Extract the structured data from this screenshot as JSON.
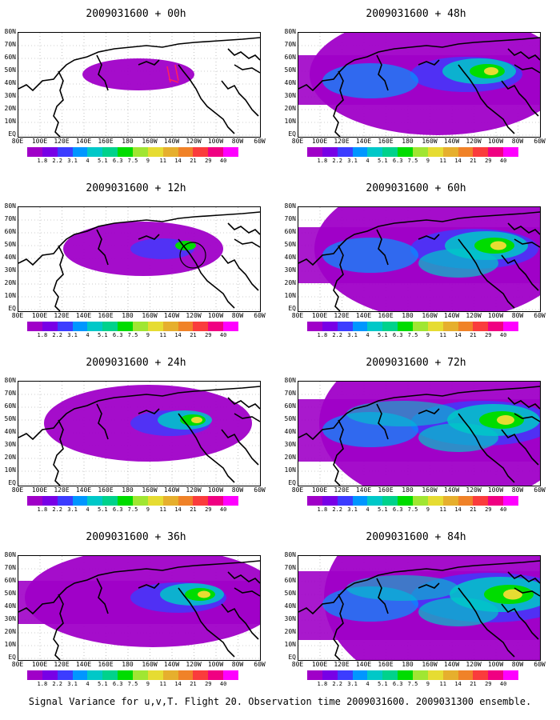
{
  "panels": [
    {
      "title": "2009031600 + 00h",
      "hour": "00h"
    },
    {
      "title": "2009031600 + 48h",
      "hour": "48h"
    },
    {
      "title": "2009031600 + 12h",
      "hour": "12h"
    },
    {
      "title": "2009031600 + 60h",
      "hour": "60h"
    },
    {
      "title": "2009031600 + 24h",
      "hour": "24h"
    },
    {
      "title": "2009031600 + 72h",
      "hour": "72h"
    },
    {
      "title": "2009031600 + 36h",
      "hour": "36h"
    },
    {
      "title": "2009031600 + 84h",
      "hour": "84h"
    }
  ],
  "lon_labels": [
    "80E",
    "100E",
    "120E",
    "140E",
    "160E",
    "180",
    "160W",
    "140W",
    "120W",
    "100W",
    "80W",
    "60W"
  ],
  "lat_labels": [
    "80N",
    "70N",
    "60N",
    "50N",
    "40N",
    "30N",
    "20N",
    "10N",
    "EQ"
  ],
  "colorbar": {
    "labels": [
      "1.8",
      "2.2",
      "3.1",
      "4",
      "5.1",
      "6.3",
      "7.5",
      "9",
      "11",
      "14",
      "21",
      "29",
      "40"
    ],
    "colors": [
      "#a000c8",
      "#7800e6",
      "#3c3cff",
      "#0096ff",
      "#00c8c8",
      "#00d28c",
      "#00dc00",
      "#a0e632",
      "#e6dc32",
      "#e6af2d",
      "#f08228",
      "#fa3c3c",
      "#f00082",
      "#ff00ff"
    ]
  },
  "caption": "Signal Variance for u,v,T. Flight 20. Observation time 2009031600. 2009031300 ensemble."
}
